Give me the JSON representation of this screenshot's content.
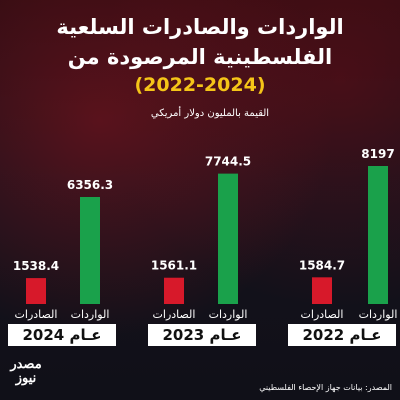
{
  "header": {
    "title_line1": "الواردات والصادرات السلعية",
    "title_line2": "الفلسطينية المرصودة من",
    "years": "(2022-2024)",
    "unit": "القيمة بالمليون دولار أمريكي"
  },
  "footer": {
    "source": "المصدر: بيانات جهاز الإحصاء الفلسطيني"
  },
  "colors": {
    "exports": "#d7192a",
    "imports": "#1aa14b",
    "year_highlight": "#f5c518"
  },
  "chart_data": {
    "type": "bar",
    "groups": [
      {
        "year_label": "عـام 2024",
        "bars": [
          {
            "label": "الصادرات",
            "value": 1538.4,
            "value_label": "1538.4",
            "series": "exports"
          },
          {
            "label": "الواردات",
            "value": 6356.3,
            "value_label": "6356.3",
            "series": "imports"
          }
        ]
      },
      {
        "year_label": "عـام 2023",
        "bars": [
          {
            "label": "الصادرات",
            "value": 1561.1,
            "value_label": "1561.1",
            "series": "exports"
          },
          {
            "label": "الواردات",
            "value": 7744.5,
            "value_label": "7744.5",
            "series": "imports"
          }
        ]
      },
      {
        "year_label": "عـام 2022",
        "bars": [
          {
            "label": "الصادرات",
            "value": 1584.7,
            "value_label": "1584.7",
            "series": "exports"
          },
          {
            "label": "الواردات",
            "value": 8197,
            "value_label": "8197",
            "series": "imports"
          }
        ]
      }
    ],
    "ylim": [
      0,
      8197
    ],
    "grid": false
  }
}
